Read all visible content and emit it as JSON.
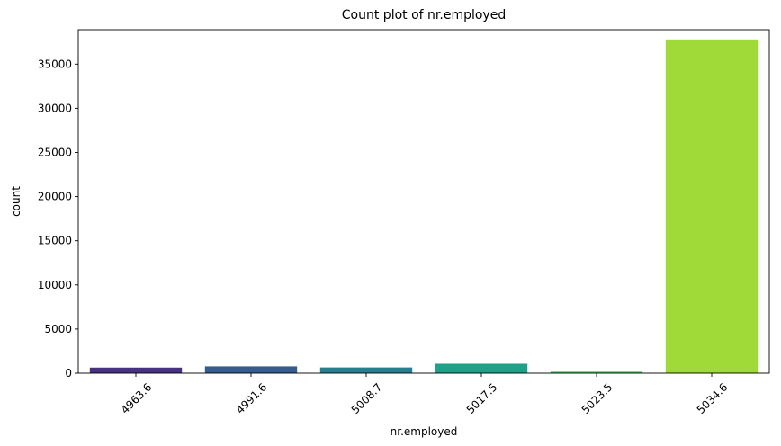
{
  "chart_data": {
    "type": "bar",
    "title": "Count plot of nr.employed",
    "xlabel": "nr.employed",
    "ylabel": "count",
    "categories": [
      "4963.6",
      "4991.6",
      "5008.7",
      "5017.5",
      "5023.5",
      "5034.6"
    ],
    "values": [
      635,
      773,
      650,
      1071,
      172,
      37800
    ],
    "colors": [
      "#46327e",
      "#365c8d",
      "#277f8e",
      "#1fa187",
      "#4ac16d",
      "#a0da39"
    ],
    "ylim": [
      0,
      38900
    ],
    "yticks": [
      0,
      5000,
      10000,
      15000,
      20000,
      25000,
      30000,
      35000
    ],
    "ytick_labels": [
      "0",
      "5000",
      "10000",
      "15000",
      "20000",
      "25000",
      "30000",
      "35000"
    ],
    "grid": false,
    "legend": "none"
  }
}
